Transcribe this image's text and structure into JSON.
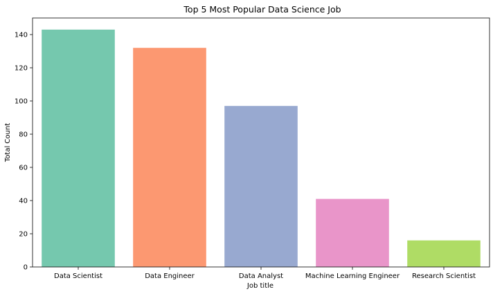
{
  "chart_data": {
    "type": "bar",
    "title": "Top 5 Most Popular Data Science Job",
    "xlabel": "Job title",
    "ylabel": "Total Count",
    "categories": [
      "Data Scientist",
      "Data Engineer",
      "Data Analyst",
      "Machine Learning Engineer",
      "Research Scientist"
    ],
    "values": [
      143,
      132,
      97,
      41,
      16
    ],
    "colors": [
      "#66c2a5",
      "#fc8d62",
      "#8da0cb",
      "#e78ac3",
      "#a6d854"
    ],
    "bar_opacity": 0.9,
    "ylim": [
      0,
      150
    ],
    "yticks": [
      0,
      20,
      40,
      60,
      80,
      100,
      120,
      140
    ],
    "grid": false,
    "legend": "none"
  }
}
